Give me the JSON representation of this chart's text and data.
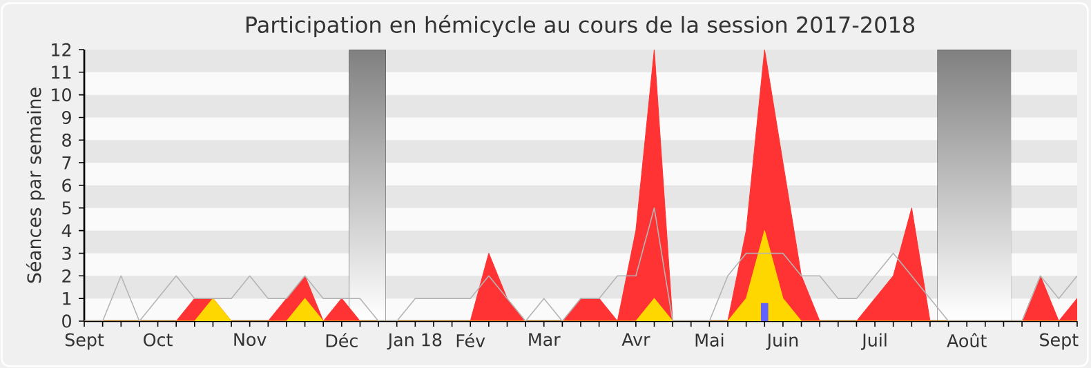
{
  "chart_data": {
    "type": "area",
    "title": "Participation en hémicycle au cours de la session 2017-2018",
    "ylabel": "Séances par semaine",
    "categories": [
      "Sept",
      null,
      null,
      null,
      "Oct",
      null,
      null,
      null,
      null,
      "Nov",
      null,
      null,
      null,
      null,
      "Déc",
      null,
      null,
      null,
      "Jan 18",
      null,
      null,
      "Fév",
      null,
      null,
      null,
      "Mar",
      null,
      null,
      null,
      null,
      "Avr",
      null,
      null,
      null,
      "Mai",
      null,
      null,
      null,
      "Juin",
      null,
      null,
      null,
      null,
      "Juil",
      null,
      null,
      null,
      null,
      "Août",
      null,
      null,
      null,
      null,
      "Sept",
      null
    ],
    "series": [
      {
        "color": "#ff3333",
        "values": [
          0,
          0,
          0,
          0,
          0,
          0,
          1,
          1,
          0,
          0,
          0,
          1,
          2,
          0,
          1,
          0,
          0,
          0,
          0,
          0,
          0,
          0,
          3,
          1,
          0,
          0,
          0,
          1,
          1,
          0,
          4,
          12,
          0,
          0,
          0,
          0,
          4,
          12,
          7,
          2,
          0,
          0,
          0,
          1,
          2,
          5,
          0,
          0,
          0,
          0,
          0,
          0,
          2,
          0,
          1
        ]
      },
      {
        "color": "#ffd700",
        "values": [
          0,
          0,
          0,
          0,
          0,
          0,
          0,
          1,
          0,
          0,
          0,
          0,
          1,
          0,
          0,
          0,
          0,
          0,
          0,
          0,
          0,
          0,
          0,
          0,
          0,
          0,
          0,
          0,
          0,
          0,
          0,
          1,
          0,
          0,
          0,
          0,
          1,
          4,
          1,
          0,
          0,
          0,
          0,
          0,
          0,
          0,
          0,
          0,
          0,
          0,
          0,
          0,
          0,
          0,
          0
        ]
      },
      {
        "type": "line",
        "color": "#b4b4b4",
        "values": [
          0,
          0,
          2,
          0,
          1,
          2,
          1,
          1,
          1,
          2,
          1,
          1,
          2,
          1,
          1,
          1,
          0,
          0,
          1,
          1,
          1,
          1,
          2,
          1,
          0,
          1,
          0,
          1,
          1,
          2,
          2,
          5,
          0,
          0,
          0,
          2,
          3,
          3,
          3,
          2,
          2,
          1,
          1,
          2,
          3,
          2,
          1,
          0,
          0,
          0,
          0,
          0,
          2,
          1,
          2
        ]
      },
      {
        "type": "bar",
        "color": "#6060ff",
        "values": [
          null,
          null,
          null,
          null,
          null,
          null,
          null,
          null,
          null,
          null,
          null,
          null,
          null,
          null,
          null,
          null,
          null,
          null,
          null,
          null,
          null,
          null,
          null,
          null,
          null,
          null,
          null,
          null,
          null,
          null,
          null,
          null,
          null,
          null,
          null,
          null,
          null,
          0.8,
          null,
          null,
          null,
          null,
          null,
          null,
          null,
          null,
          null,
          null,
          null,
          null,
          null,
          null,
          null,
          null,
          null
        ]
      }
    ],
    "ylim": [
      0,
      12
    ],
    "yticks": [
      0,
      1,
      2,
      3,
      4,
      5,
      6,
      7,
      8,
      9,
      10,
      11,
      12
    ]
  }
}
